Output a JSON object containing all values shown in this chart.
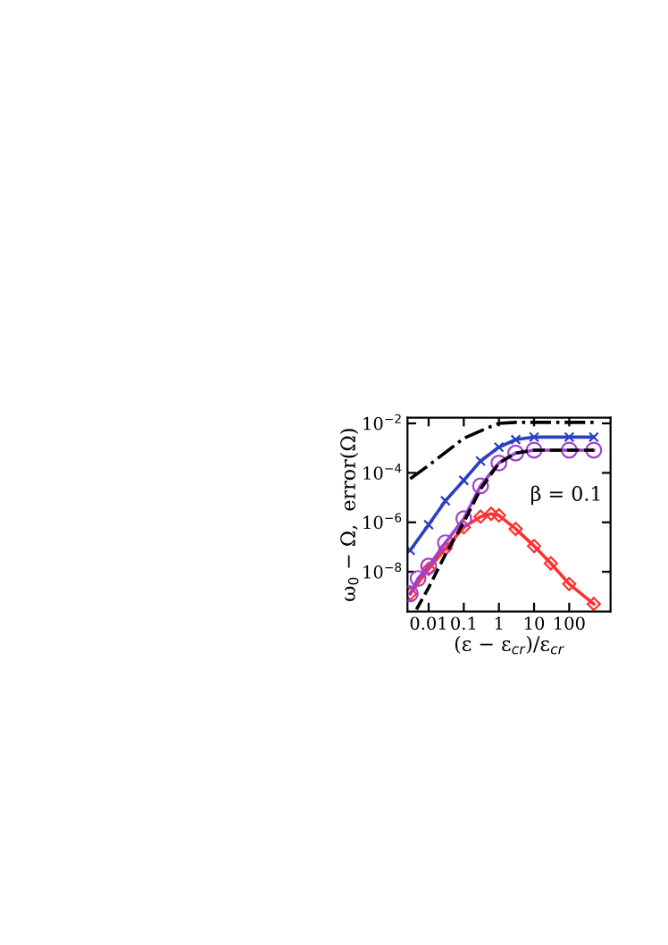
{
  "chart_data": {
    "type": "line",
    "xlabel": "(ε − ε$_{cr}$)/ε$_{cr}$",
    "ylabel": "ω$_{0}$ − Ω,  error(Ω)",
    "log": "xy",
    "grid": false,
    "legend": false,
    "xlim": [
      0.0025,
      1500
    ],
    "ylim": [
      2.5e-10,
      0.017
    ],
    "xticks": [
      0.01,
      0.1,
      1,
      10,
      100
    ],
    "yticks": [
      {
        "value": 0.01,
        "label": "10$^{−2}$"
      },
      {
        "value": 0.0001,
        "label": "10$^{−4}$"
      },
      {
        "value": 1e-06,
        "label": "10$^{−6}$"
      },
      {
        "value": 1e-08,
        "label": "10$^{−8}$"
      }
    ],
    "annotations": [
      {
        "text": "β = 0.1"
      }
    ],
    "series": [
      {
        "color": "#000000",
        "line_style": "dashdot",
        "marker": "none",
        "x": [
          0.003,
          0.01,
          0.1,
          0.5,
          1,
          3,
          10,
          100,
          500
        ],
        "values": [
          5.8e-05,
          0.0002,
          0.0025,
          0.0068,
          0.01,
          0.011,
          0.011,
          0.011,
          0.011
        ]
      },
      {
        "color": "#2b3fbf",
        "line_style": "solid",
        "marker": "cross",
        "x": [
          0.003,
          0.01,
          0.03,
          0.1,
          0.3,
          1,
          3,
          10,
          100,
          500
        ],
        "values": [
          7.4e-08,
          8e-07,
          7.4e-06,
          5e-05,
          0.0003,
          0.0011,
          0.0022,
          0.0028,
          0.0028,
          0.0028
        ]
      },
      {
        "color": "#a040d0",
        "line_style": "solid",
        "marker": "circle",
        "x": [
          0.003,
          0.005,
          0.01,
          0.03,
          0.1,
          0.3,
          1,
          3,
          10,
          100,
          500
        ],
        "values": [
          1.3e-09,
          5.4e-09,
          1.7e-08,
          1.5e-07,
          1.4e-06,
          3e-05,
          0.00025,
          0.00063,
          0.00083,
          0.00083,
          0.00083
        ]
      },
      {
        "color": "#000000",
        "line_style": "dashed",
        "marker": "none",
        "x": [
          0.0045,
          0.01,
          0.03,
          0.1,
          0.3,
          1,
          3,
          10,
          100,
          500
        ],
        "values": [
          3e-10,
          2.3e-09,
          5e-08,
          1e-06,
          2.2e-05,
          0.00025,
          0.00063,
          0.00083,
          0.00083,
          0.00083
        ]
      },
      {
        "color": "#ff3030",
        "line_style": "solid",
        "marker": "diamond",
        "x": [
          0.003,
          0.01,
          0.03,
          0.1,
          0.3,
          0.6,
          1,
          3,
          10,
          30,
          100,
          500
        ],
        "values": [
          1.3e-09,
          1.3e-08,
          8.7e-08,
          6.3e-07,
          1.7e-06,
          2.2e-06,
          1.9e-06,
          5.4e-07,
          1.1e-07,
          2.2e-08,
          3.2e-09,
          5e-10
        ]
      }
    ]
  }
}
